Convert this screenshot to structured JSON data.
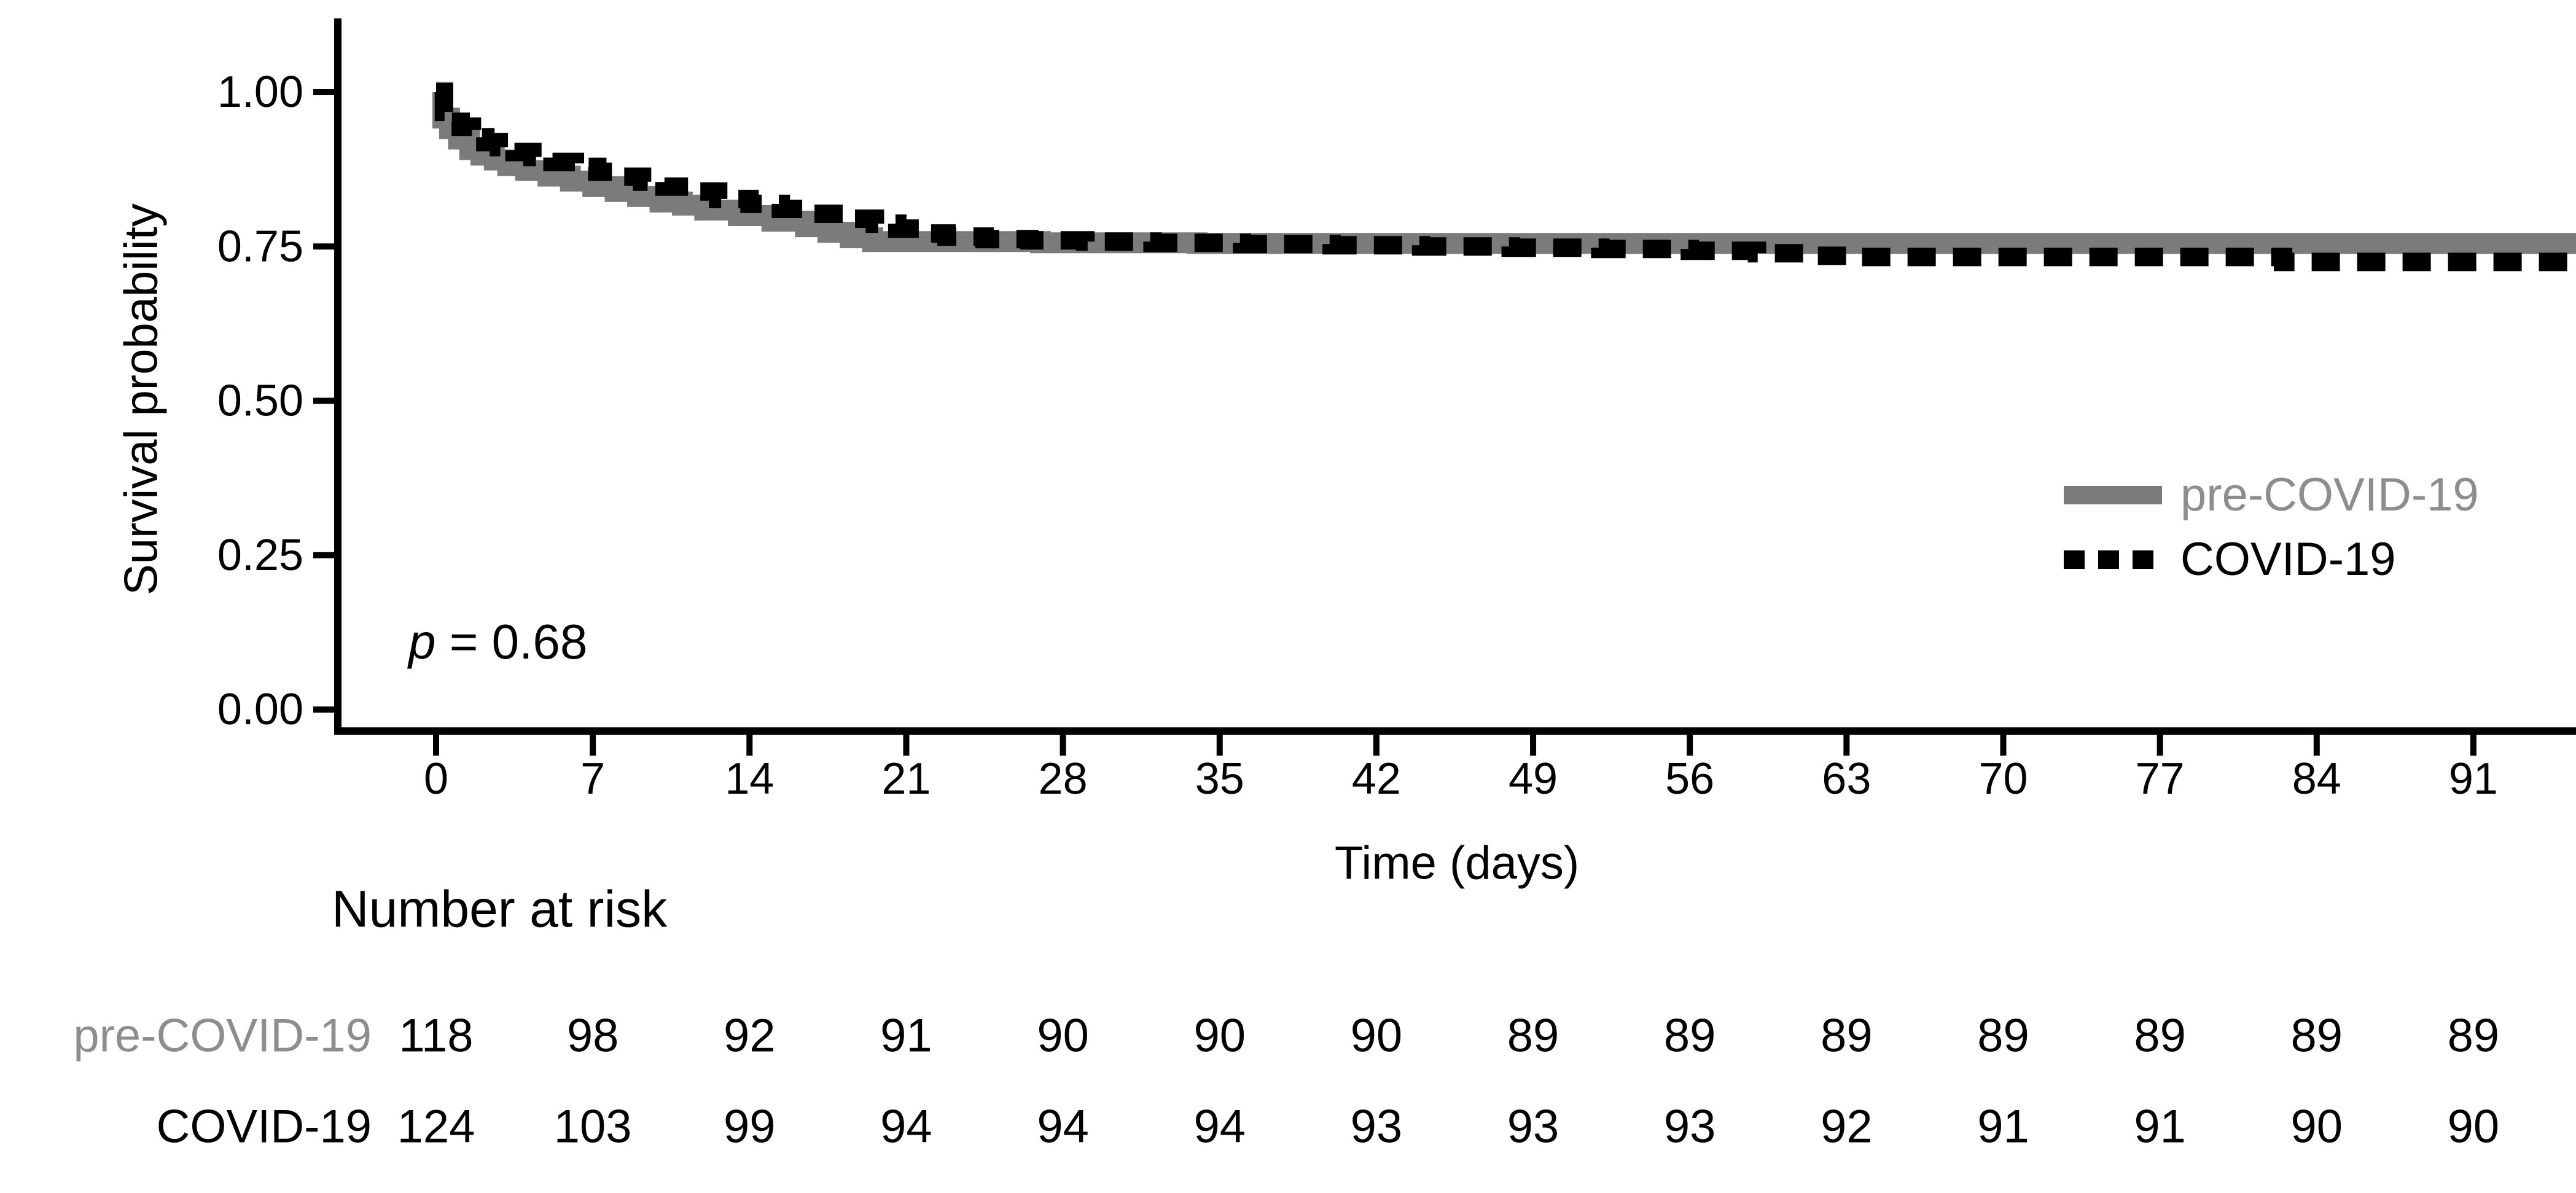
{
  "figure": {
    "background": "#ffffff"
  },
  "y_axis": {
    "title": "Survival probability",
    "tick_labels": [
      "1.00",
      "0.75",
      "0.50",
      "0.25",
      "0.00"
    ],
    "tick_values": [
      1.0,
      0.75,
      0.5,
      0.25,
      0.0
    ]
  },
  "x_axis": {
    "title": "Time (days)",
    "tick_labels": [
      "0",
      "7",
      "14",
      "21",
      "28",
      "35",
      "42",
      "49",
      "56",
      "63",
      "70",
      "77",
      "84",
      "91"
    ],
    "tick_values": [
      0,
      7,
      14,
      21,
      28,
      35,
      42,
      49,
      56,
      63,
      70,
      77,
      84,
      91
    ]
  },
  "p_value": {
    "symbol": "p",
    "rest": " = 0.68",
    "text": "p = 0.68"
  },
  "legend": {
    "position": "right-middle",
    "items": [
      {
        "label": "pre-COVID-19",
        "color": "#7b7b7b",
        "line_style": "solid"
      },
      {
        "label": "COVID-19",
        "color": "#000000",
        "line_style": "dashed"
      }
    ]
  },
  "risk_table": {
    "title": "Number at risk",
    "time_points": [
      0,
      7,
      14,
      21,
      28,
      35,
      42,
      49,
      56,
      63,
      70,
      77,
      84,
      91
    ],
    "rows": [
      {
        "label": "pre-COVID-19",
        "label_color": "#8d8d8d",
        "values": [
          "118",
          "98",
          "92",
          "91",
          "90",
          "90",
          "90",
          "89",
          "89",
          "89",
          "89",
          "89",
          "89",
          "89"
        ]
      },
      {
        "label": "COVID-19",
        "label_color": "#000000",
        "values": [
          "124",
          "103",
          "99",
          "94",
          "94",
          "94",
          "93",
          "93",
          "93",
          "92",
          "91",
          "91",
          "90",
          "90"
        ]
      }
    ]
  },
  "chart_data": {
    "type": "line",
    "subtype": "kaplan-meier-step",
    "title": "",
    "xlabel": "Time (days)",
    "ylabel": "Survival probability",
    "x_range": [
      0,
      95.5
    ],
    "ylim": [
      0,
      1
    ],
    "grid": false,
    "legend_position": "right-middle",
    "annotations": [
      {
        "text": "p = 0.68",
        "x_day": 10,
        "y_value": 0.11
      }
    ],
    "series": [
      {
        "name": "pre-COVID-19",
        "color": "#7b7b7b",
        "style": "solid",
        "n_start": 118,
        "points": [
          [
            0,
            1.0
          ],
          [
            0.3,
            0.958
          ],
          [
            0.6,
            0.941
          ],
          [
            1.0,
            0.924
          ],
          [
            1.5,
            0.907
          ],
          [
            2.0,
            0.898
          ],
          [
            2.6,
            0.89
          ],
          [
            3.2,
            0.881
          ],
          [
            4.0,
            0.873
          ],
          [
            5.0,
            0.864
          ],
          [
            6.0,
            0.856
          ],
          [
            7.0,
            0.847
          ],
          [
            8.0,
            0.839
          ],
          [
            9.0,
            0.831
          ],
          [
            10.0,
            0.822
          ],
          [
            11.0,
            0.817
          ],
          [
            12.0,
            0.809
          ],
          [
            13.5,
            0.8
          ],
          [
            15.0,
            0.791
          ],
          [
            16.5,
            0.782
          ],
          [
            17.5,
            0.773
          ],
          [
            18.5,
            0.764
          ],
          [
            19.5,
            0.758
          ],
          [
            27.0,
            0.756
          ],
          [
            34.0,
            0.755
          ],
          [
            95.5,
            0.755
          ]
        ]
      },
      {
        "name": "COVID-19",
        "color": "#000000",
        "style": "dashed",
        "n_start": 124,
        "points": [
          [
            0,
            1.0
          ],
          [
            0.35,
            0.968
          ],
          [
            0.7,
            0.952
          ],
          [
            1.1,
            0.944
          ],
          [
            1.6,
            0.927
          ],
          [
            2.2,
            0.919
          ],
          [
            2.8,
            0.911
          ],
          [
            3.5,
            0.903
          ],
          [
            4.3,
            0.895
          ],
          [
            5.2,
            0.887
          ],
          [
            6.2,
            0.879
          ],
          [
            7.2,
            0.871
          ],
          [
            8.2,
            0.863
          ],
          [
            9.2,
            0.855
          ],
          [
            10.2,
            0.847
          ],
          [
            11.4,
            0.839
          ],
          [
            12.6,
            0.827
          ],
          [
            14.0,
            0.819
          ],
          [
            15.4,
            0.811
          ],
          [
            16.8,
            0.803
          ],
          [
            18.2,
            0.795
          ],
          [
            19.6,
            0.787
          ],
          [
            20.6,
            0.779
          ],
          [
            21.6,
            0.771
          ],
          [
            22.8,
            0.766
          ],
          [
            24.5,
            0.762
          ],
          [
            26.5,
            0.76
          ],
          [
            29.0,
            0.758
          ],
          [
            32.0,
            0.756
          ],
          [
            36.0,
            0.754
          ],
          [
            40.0,
            0.752
          ],
          [
            44.0,
            0.75
          ],
          [
            48.0,
            0.748
          ],
          [
            52.0,
            0.746
          ],
          [
            56.0,
            0.743
          ],
          [
            59.0,
            0.739
          ],
          [
            61.5,
            0.735
          ],
          [
            63.0,
            0.733
          ],
          [
            81.5,
            0.733
          ],
          [
            82.5,
            0.725
          ],
          [
            95.5,
            0.725
          ]
        ]
      }
    ]
  }
}
